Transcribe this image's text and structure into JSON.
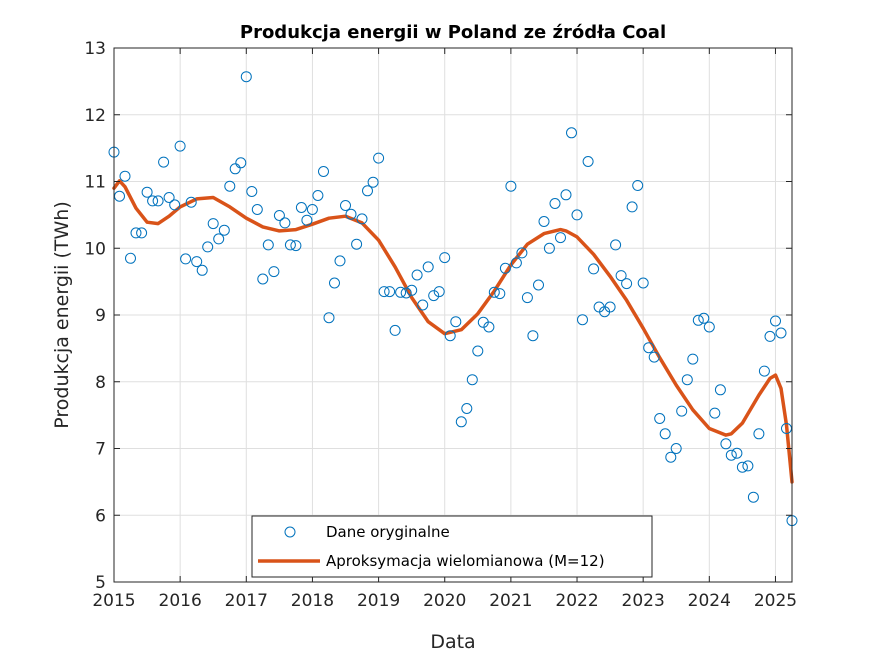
{
  "chart_data": {
    "type": "scatter",
    "title": "Produkcja energii w Poland ze źródła Coal",
    "xlabel": "Data",
    "ylabel": "Produkcja energii (TWh)",
    "xlim": [
      2015,
      2025.25
    ],
    "ylim": [
      5,
      13
    ],
    "x_ticks": [
      "2015",
      "2016",
      "2017",
      "2018",
      "2019",
      "2020",
      "2021",
      "2022",
      "2023",
      "2024",
      "2025"
    ],
    "y_ticks": [
      "5",
      "6",
      "7",
      "8",
      "9",
      "10",
      "11",
      "12",
      "13"
    ],
    "grid": true,
    "legend_position": "bottom-center",
    "series": [
      {
        "name": "Dane oryginalne",
        "style": "markers",
        "color": "#0072bd",
        "x": [
          2015.0,
          2015.083,
          2015.167,
          2015.25,
          2015.333,
          2015.417,
          2015.5,
          2015.583,
          2015.667,
          2015.75,
          2015.833,
          2015.917,
          2016.0,
          2016.083,
          2016.167,
          2016.25,
          2016.333,
          2016.417,
          2016.5,
          2016.583,
          2016.667,
          2016.75,
          2016.833,
          2016.917,
          2017.0,
          2017.083,
          2017.167,
          2017.25,
          2017.333,
          2017.417,
          2017.5,
          2017.583,
          2017.667,
          2017.75,
          2017.833,
          2017.917,
          2018.0,
          2018.083,
          2018.167,
          2018.25,
          2018.333,
          2018.417,
          2018.5,
          2018.583,
          2018.667,
          2018.75,
          2018.833,
          2018.917,
          2019.0,
          2019.083,
          2019.167,
          2019.25,
          2019.333,
          2019.417,
          2019.5,
          2019.583,
          2019.667,
          2019.75,
          2019.833,
          2019.917,
          2020.0,
          2020.083,
          2020.167,
          2020.25,
          2020.333,
          2020.417,
          2020.5,
          2020.583,
          2020.667,
          2020.75,
          2020.833,
          2020.917,
          2021.0,
          2021.083,
          2021.167,
          2021.25,
          2021.333,
          2021.417,
          2021.5,
          2021.583,
          2021.667,
          2021.75,
          2021.833,
          2021.917,
          2022.0,
          2022.083,
          2022.167,
          2022.25,
          2022.333,
          2022.417,
          2022.5,
          2022.583,
          2022.667,
          2022.75,
          2022.833,
          2022.917,
          2023.0,
          2023.083,
          2023.167,
          2023.25,
          2023.333,
          2023.417,
          2023.5,
          2023.583,
          2023.667,
          2023.75,
          2023.833,
          2023.917,
          2024.0,
          2024.083,
          2024.167,
          2024.25,
          2024.333,
          2024.417,
          2024.5,
          2024.583,
          2024.667,
          2024.75,
          2024.833,
          2024.917,
          2025.0,
          2025.083,
          2025.167,
          2025.25
        ],
        "y": [
          11.44,
          10.78,
          11.08,
          9.85,
          10.23,
          10.23,
          10.84,
          10.71,
          10.71,
          11.29,
          10.76,
          10.65,
          11.53,
          9.84,
          10.69,
          9.8,
          9.67,
          10.02,
          10.37,
          10.14,
          10.27,
          10.93,
          11.19,
          11.28,
          12.57,
          10.85,
          10.58,
          9.54,
          10.05,
          9.65,
          10.49,
          10.38,
          10.05,
          10.04,
          10.61,
          10.42,
          10.58,
          10.79,
          11.15,
          8.96,
          9.48,
          9.81,
          10.64,
          10.51,
          10.06,
          10.44,
          10.86,
          10.99,
          11.35,
          9.35,
          9.35,
          8.77,
          9.34,
          9.33,
          9.37,
          9.6,
          9.15,
          9.72,
          9.29,
          9.35,
          9.86,
          8.69,
          8.9,
          7.4,
          7.6,
          8.03,
          8.46,
          8.89,
          8.82,
          9.34,
          9.32,
          9.7,
          10.93,
          9.78,
          9.93,
          9.26,
          8.69,
          9.45,
          10.4,
          10.0,
          10.67,
          10.16,
          10.8,
          11.73,
          10.5,
          8.93,
          11.3,
          9.69,
          9.12,
          9.05,
          9.12,
          10.05,
          9.59,
          9.47,
          10.62,
          10.94,
          9.48,
          8.51,
          8.37,
          7.45,
          7.22,
          6.87,
          7.0,
          7.56,
          8.03,
          8.34,
          8.92,
          8.95,
          8.82,
          7.53,
          7.88,
          7.07,
          6.9,
          6.93,
          6.72,
          6.74,
          6.27,
          7.22,
          8.16,
          8.68,
          8.91,
          8.73,
          7.3,
          5.92
        ]
      },
      {
        "name": "Aproksymacja wielomianowa (M=12)",
        "style": "line",
        "color": "#d95319",
        "x": [
          2015.0,
          2015.083,
          2015.167,
          2015.333,
          2015.5,
          2015.667,
          2015.833,
          2016.0,
          2016.25,
          2016.5,
          2016.75,
          2017.0,
          2017.25,
          2017.5,
          2017.75,
          2018.0,
          2018.25,
          2018.5,
          2018.75,
          2019.0,
          2019.25,
          2019.5,
          2019.75,
          2020.0,
          2020.25,
          2020.5,
          2020.75,
          2021.0,
          2021.25,
          2021.5,
          2021.75,
          2021.833,
          2022.0,
          2022.25,
          2022.5,
          2022.75,
          2023.0,
          2023.25,
          2023.5,
          2023.75,
          2024.0,
          2024.25,
          2024.333,
          2024.5,
          2024.75,
          2024.917,
          2025.0,
          2025.083,
          2025.167,
          2025.25
        ],
        "y": [
          10.9,
          11.01,
          10.92,
          10.6,
          10.39,
          10.37,
          10.48,
          10.62,
          10.74,
          10.76,
          10.62,
          10.45,
          10.32,
          10.26,
          10.28,
          10.36,
          10.45,
          10.48,
          10.38,
          10.12,
          9.72,
          9.26,
          8.9,
          8.72,
          8.78,
          9.02,
          9.36,
          9.75,
          10.06,
          10.22,
          10.28,
          10.26,
          10.17,
          9.91,
          9.58,
          9.22,
          8.8,
          8.36,
          7.95,
          7.58,
          7.3,
          7.2,
          7.22,
          7.38,
          7.8,
          8.05,
          8.1,
          7.9,
          7.35,
          6.5
        ]
      }
    ]
  }
}
